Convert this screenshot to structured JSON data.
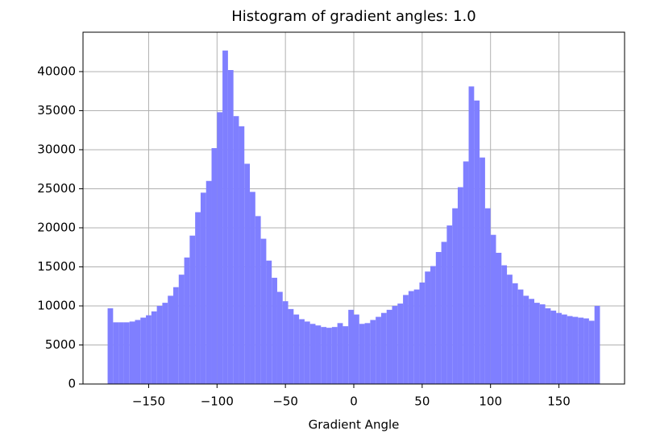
{
  "chart_data": {
    "type": "histogram",
    "title": "Histogram of gradient angles: 1.0",
    "x_label": "Gradient Angle",
    "bins": [
      -180,
      -176,
      -172,
      -168,
      -164,
      -160,
      -156,
      -152,
      -148,
      -144,
      -140,
      -136,
      -132,
      -128,
      -124,
      -120,
      -116,
      -112,
      -108,
      -104,
      -100,
      -96,
      -92,
      -88,
      -84,
      -80,
      -76,
      -72,
      -68,
      -64,
      -60,
      -56,
      -52,
      -48,
      -44,
      -40,
      -36,
      -32,
      -28,
      -24,
      -20,
      -16,
      -12,
      -8,
      -4,
      0,
      4,
      8,
      12,
      16,
      20,
      24,
      28,
      32,
      36,
      40,
      44,
      48,
      52,
      56,
      60,
      64,
      68,
      72,
      76,
      80,
      84,
      88,
      92,
      96,
      100,
      104,
      108,
      112,
      116,
      120,
      124,
      128,
      132,
      136,
      140,
      144,
      148,
      152,
      156,
      160,
      164,
      168,
      172,
      176,
      180
    ],
    "values": [
      9700,
      7900,
      7900,
      7900,
      8000,
      8200,
      8500,
      8800,
      9300,
      10000,
      10400,
      11300,
      12400,
      14000,
      16200,
      19000,
      22000,
      24500,
      26000,
      30200,
      34800,
      42700,
      40200,
      34300,
      33000,
      28200,
      24600,
      21500,
      18600,
      15800,
      13600,
      11800,
      10600,
      9600,
      8900,
      8300,
      8000,
      7700,
      7500,
      7300,
      7200,
      7300,
      7800,
      7400,
      9500,
      8900,
      7700,
      7800,
      8200,
      8600,
      9100,
      9500,
      10000,
      10300,
      11400,
      11900,
      12100,
      13000,
      14400,
      15100,
      16900,
      18200,
      20300,
      22500,
      25200,
      28500,
      38100,
      36300,
      29000,
      22500,
      19100,
      16800,
      15200,
      14000,
      12900,
      12100,
      11300,
      10900,
      10400,
      10200,
      9700,
      9400,
      9100,
      8900,
      8700,
      8600,
      8500,
      8400,
      8100,
      10000
    ],
    "color": "#7f7fff",
    "xlim": [
      -198,
      198
    ],
    "ylim": [
      0,
      45045
    ],
    "xticks": [
      {
        "value": -150,
        "label": "−150"
      },
      {
        "value": -100,
        "label": "−100"
      },
      {
        "value": -50,
        "label": "−50"
      },
      0,
      50,
      100,
      150
    ],
    "yticks": [
      0,
      5000,
      10000,
      15000,
      20000,
      25000,
      30000,
      35000,
      40000
    ],
    "grid": true
  }
}
